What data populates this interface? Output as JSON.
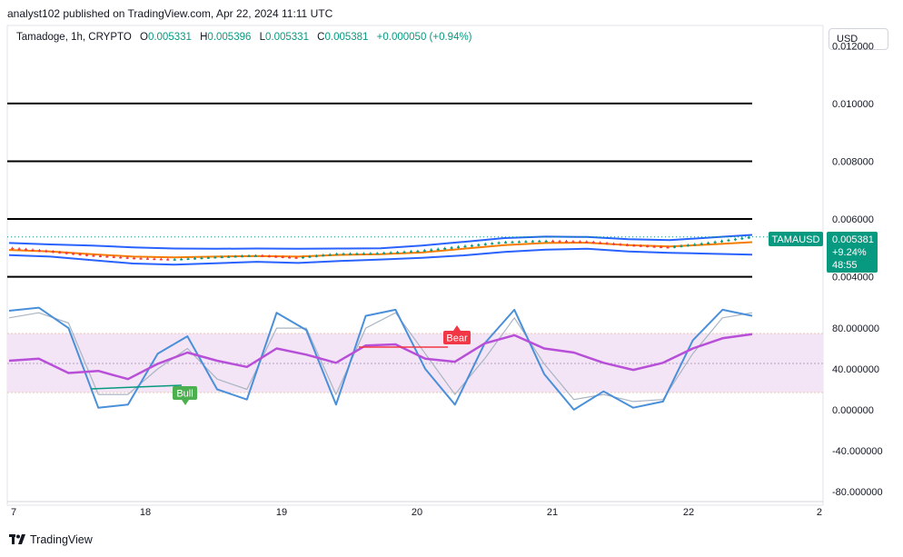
{
  "attribution": "analyst102 published on TradingView.com, Apr 22, 2024 11:11 UTC",
  "header": {
    "symbol": "Tamadoge, 1h, CRYPTO",
    "open_label": "O",
    "open": "0.005331",
    "high_label": "H",
    "high": "0.005396",
    "low_label": "L",
    "low": "0.005331",
    "close_label": "C",
    "close": "0.005381",
    "change": "+0.000050 (+0.94%)"
  },
  "currency": "USD",
  "price_badge": {
    "ticker": "TAMAUSD",
    "price": "0.005381",
    "change": "+9.24%",
    "countdown": "48:55"
  },
  "signals": {
    "bull": "Bull",
    "bear": "Bear"
  },
  "footer": {
    "brand": "TradingView"
  },
  "colors": {
    "up": "#089981",
    "down": "#f23645",
    "bollinger": "#2962ff",
    "ma": "#f57c00",
    "stoch_k": "#4a8fd9",
    "stoch_d": "#a9b4c2",
    "rsi": "#b84fd9",
    "rsi_band": "#f3e5f5"
  },
  "chart_data": [
    {
      "type": "line",
      "title": "",
      "x_ticks": [
        "7",
        "18",
        "19",
        "20",
        "21",
        "22",
        "2"
      ],
      "ylim": [
        0.0038,
        0.0127
      ],
      "y_ticks": [
        "0.012000",
        "0.010000",
        "0.008000",
        "0.006000",
        "0.004000"
      ],
      "horizontal_levels": [
        0.01,
        0.008,
        0.006,
        0.004
      ],
      "last_price": 0.005381,
      "series": [
        {
          "role": "upper_band",
          "values": [
            0.00517,
            0.00512,
            0.00508,
            0.00502,
            0.00498,
            0.00497,
            0.00498,
            0.00497,
            0.00498,
            0.00499,
            0.00508,
            0.00521,
            0.00534,
            0.00539,
            0.00538,
            0.0053,
            0.00527,
            0.00536,
            0.00545
          ]
        },
        {
          "role": "moving_average",
          "values": [
            0.00493,
            0.00488,
            0.00478,
            0.0047,
            0.00467,
            0.0047,
            0.00472,
            0.0047,
            0.00476,
            0.00478,
            0.00484,
            0.00497,
            0.0051,
            0.00517,
            0.00518,
            0.0051,
            0.00505,
            0.00512,
            0.0052
          ]
        },
        {
          "role": "lower_band",
          "values": [
            0.00475,
            0.0047,
            0.00458,
            0.00446,
            0.00442,
            0.00447,
            0.00452,
            0.00448,
            0.00455,
            0.0046,
            0.00466,
            0.00474,
            0.00486,
            0.00494,
            0.00497,
            0.00488,
            0.00483,
            0.0048,
            0.00477
          ]
        },
        {
          "role": "price",
          "values": [
            0.005,
            0.00488,
            0.00474,
            0.00465,
            0.0046,
            0.00468,
            0.00474,
            0.00466,
            0.0048,
            0.00482,
            0.0049,
            0.00505,
            0.0052,
            0.00525,
            0.00522,
            0.0051,
            0.00502,
            0.00518,
            0.00538
          ]
        }
      ]
    },
    {
      "type": "line",
      "title": "",
      "ylim": [
        -90,
        105
      ],
      "y_ticks": [
        "80.000000",
        "40.000000",
        "0.000000",
        "-40.000000",
        "-80.000000"
      ],
      "band": [
        20,
        80
      ],
      "series": [
        {
          "role": "stochastic_k",
          "values": [
            97,
            100,
            80,
            2,
            5,
            55,
            72,
            20,
            10,
            95,
            78,
            5,
            92,
            98,
            40,
            5,
            65,
            98,
            35,
            0,
            18,
            2,
            8,
            68,
            98,
            92
          ]
        },
        {
          "role": "stochastic_d",
          "values": [
            90,
            95,
            85,
            15,
            15,
            40,
            60,
            30,
            20,
            80,
            80,
            15,
            80,
            95,
            55,
            15,
            50,
            90,
            45,
            10,
            15,
            8,
            10,
            55,
            90,
            95
          ]
        },
        {
          "role": "rsi",
          "values": [
            48,
            50,
            36,
            38,
            30,
            45,
            56,
            48,
            42,
            60,
            54,
            46,
            63,
            64,
            50,
            47,
            65,
            73,
            60,
            56,
            46,
            39,
            46,
            60,
            70,
            74
          ]
        }
      ]
    }
  ]
}
